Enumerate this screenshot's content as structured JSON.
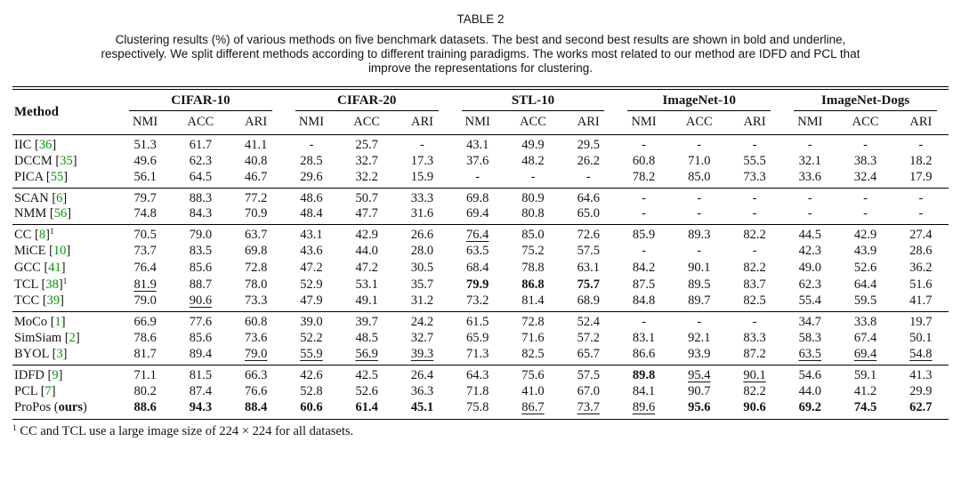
{
  "caption": {
    "title": "TABLE 2",
    "lines": [
      "Clustering results (%) of various methods on five benchmark datasets. The best and second best results are shown in bold and underline,",
      "respectively. We split different methods according to different training paradigms. The works most related to our method are IDFD and PCL that",
      "improve the representations for clustering."
    ]
  },
  "colors": {
    "citation_green": "#009900",
    "rule_black": "#000000",
    "background": "#ffffff"
  },
  "table": {
    "method_header": "Method",
    "dataset_groups": [
      {
        "label": "CIFAR-10"
      },
      {
        "label": "CIFAR-20"
      },
      {
        "label": "STL-10"
      },
      {
        "label": "ImageNet-10"
      },
      {
        "label": "ImageNet-Dogs"
      }
    ],
    "metric_headers": [
      "NMI",
      "ACC",
      "ARI"
    ],
    "groups": [
      {
        "rows": [
          {
            "name": "IIC",
            "cite": "36",
            "values": [
              "51.3",
              "61.7",
              "41.1",
              "-",
              "25.7",
              "-",
              "43.1",
              "49.9",
              "29.5",
              "-",
              "-",
              "-",
              "-",
              "-",
              "-"
            ]
          },
          {
            "name": "DCCM",
            "cite": "35",
            "values": [
              "49.6",
              "62.3",
              "40.8",
              "28.5",
              "32.7",
              "17.3",
              "37.6",
              "48.2",
              "26.2",
              "60.8",
              "71.0",
              "55.5",
              "32.1",
              "38.3",
              "18.2"
            ]
          },
          {
            "name": "PICA",
            "cite": "55",
            "values": [
              "56.1",
              "64.5",
              "46.7",
              "29.6",
              "32.2",
              "15.9",
              "-",
              "-",
              "-",
              "78.2",
              "85.0",
              "73.3",
              "33.6",
              "32.4",
              "17.9"
            ]
          }
        ]
      },
      {
        "rows": [
          {
            "name": "SCAN",
            "cite": "6",
            "values": [
              "79.7",
              "88.3",
              "77.2",
              "48.6",
              "50.7",
              "33.3",
              "69.8",
              "80.9",
              "64.6",
              "-",
              "-",
              "-",
              "-",
              "-",
              "-"
            ]
          },
          {
            "name": "NMM",
            "cite": "56",
            "values": [
              "74.8",
              "84.3",
              "70.9",
              "48.4",
              "47.7",
              "31.6",
              "69.4",
              "80.8",
              "65.0",
              "-",
              "-",
              "-",
              "-",
              "-",
              "-"
            ]
          }
        ]
      },
      {
        "rows": [
          {
            "name": "CC",
            "cite": "8",
            "sup": "1",
            "values": [
              "70.5",
              "79.0",
              "63.7",
              "43.1",
              "42.9",
              "26.6",
              "76.4",
              "85.0",
              "72.6",
              "85.9",
              "89.3",
              "82.2",
              "44.5",
              "42.9",
              "27.4"
            ],
            "fmt": {
              "6": "u"
            }
          },
          {
            "name": "MiCE",
            "cite": "10",
            "values": [
              "73.7",
              "83.5",
              "69.8",
              "43.6",
              "44.0",
              "28.0",
              "63.5",
              "75.2",
              "57.5",
              "-",
              "-",
              "-",
              "42.3",
              "43.9",
              "28.6"
            ]
          },
          {
            "name": "GCC",
            "cite": "41",
            "values": [
              "76.4",
              "85.6",
              "72.8",
              "47.2",
              "47.2",
              "30.5",
              "68.4",
              "78.8",
              "63.1",
              "84.2",
              "90.1",
              "82.2",
              "49.0",
              "52.6",
              "36.2"
            ]
          },
          {
            "name": "TCL",
            "cite": "38",
            "sup": "1",
            "values": [
              "81.9",
              "88.7",
              "78.0",
              "52.9",
              "53.1",
              "35.7",
              "79.9",
              "86.8",
              "75.7",
              "87.5",
              "89.5",
              "83.7",
              "62.3",
              "64.4",
              "51.6"
            ],
            "fmt": {
              "0": "u",
              "6": "b",
              "7": "b",
              "8": "b"
            }
          },
          {
            "name": "TCC",
            "cite": "39",
            "values": [
              "79.0",
              "90.6",
              "73.3",
              "47.9",
              "49.1",
              "31.2",
              "73.2",
              "81.4",
              "68.9",
              "84.8",
              "89.7",
              "82.5",
              "55.4",
              "59.5",
              "41.7"
            ],
            "fmt": {
              "1": "u"
            }
          }
        ]
      },
      {
        "rows": [
          {
            "name": "MoCo",
            "cite": "1",
            "values": [
              "66.9",
              "77.6",
              "60.8",
              "39.0",
              "39.7",
              "24.2",
              "61.5",
              "72.8",
              "52.4",
              "-",
              "-",
              "-",
              "34.7",
              "33.8",
              "19.7"
            ]
          },
          {
            "name": "SimSiam",
            "cite": "2",
            "values": [
              "78.6",
              "85.6",
              "73.6",
              "52.2",
              "48.5",
              "32.7",
              "65.9",
              "71.6",
              "57.2",
              "83.1",
              "92.1",
              "83.3",
              "58.3",
              "67.4",
              "50.1"
            ]
          },
          {
            "name": "BYOL",
            "cite": "3",
            "values": [
              "81.7",
              "89.4",
              "79.0",
              "55.9",
              "56.9",
              "39.3",
              "71.3",
              "82.5",
              "65.7",
              "86.6",
              "93.9",
              "87.2",
              "63.5",
              "69.4",
              "54.8"
            ],
            "fmt": {
              "2": "u",
              "3": "u",
              "4": "u",
              "5": "u",
              "12": "u",
              "13": "u",
              "14": "u"
            }
          }
        ]
      },
      {
        "rows": [
          {
            "name": "IDFD",
            "cite": "9",
            "values": [
              "71.1",
              "81.5",
              "66.3",
              "42.6",
              "42.5",
              "26.4",
              "64.3",
              "75.6",
              "57.5",
              "89.8",
              "95.4",
              "90.1",
              "54.6",
              "59.1",
              "41.3"
            ],
            "fmt": {
              "9": "b",
              "10": "u",
              "11": "u"
            }
          },
          {
            "name": "PCL",
            "cite": "7",
            "values": [
              "80.2",
              "87.4",
              "76.6",
              "52.8",
              "52.6",
              "36.3",
              "71.8",
              "41.0",
              "67.0",
              "84.1",
              "90.7",
              "82.2",
              "44.0",
              "41.2",
              "29.9"
            ]
          },
          {
            "name": "ProPos",
            "ours": "ours",
            "values": [
              "88.6",
              "94.3",
              "88.4",
              "60.6",
              "61.4",
              "45.1",
              "75.8",
              "86.7",
              "73.7",
              "89.6",
              "95.6",
              "90.6",
              "69.2",
              "74.5",
              "62.7"
            ],
            "fmt": {
              "0": "b",
              "1": "b",
              "2": "b",
              "3": "b",
              "4": "b",
              "5": "b",
              "7": "u",
              "8": "u",
              "9": "u",
              "10": "b",
              "11": "b",
              "12": "b",
              "13": "b",
              "14": "b"
            }
          }
        ]
      }
    ]
  },
  "footnote": {
    "sup": "1",
    "text": "CC and TCL use a large image size of 224 × 224 for all datasets."
  }
}
